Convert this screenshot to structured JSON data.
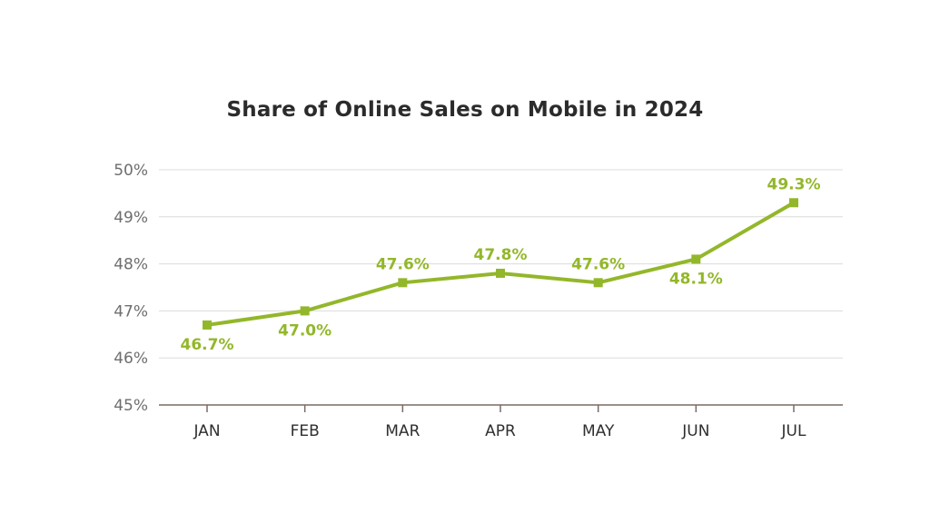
{
  "chart_data": {
    "type": "line",
    "title": "Share of Online Sales on Mobile in 2024",
    "xlabel": "",
    "ylabel": "",
    "categories": [
      "JAN",
      "FEB",
      "MAR",
      "APR",
      "MAY",
      "JUN",
      "JUL"
    ],
    "series": [
      {
        "values": [
          46.7,
          47.0,
          47.6,
          47.8,
          47.6,
          48.1,
          49.3
        ],
        "labels": [
          "46.7%",
          "47.0%",
          "47.6%",
          "47.8%",
          "47.6%",
          "48.1%",
          "49.3%"
        ],
        "label_positions": [
          "below",
          "below",
          "above",
          "above",
          "above",
          "below",
          "above"
        ]
      }
    ],
    "ylim": [
      45,
      50
    ],
    "yticks": [
      45,
      46,
      47,
      48,
      49,
      50
    ],
    "ytick_labels": [
      "45%",
      "46%",
      "47%",
      "48%",
      "49%",
      "50%"
    ],
    "grid": true,
    "legend": "none",
    "colors": {
      "line": "#93B72A",
      "grid": "#dcdcdc",
      "axis": "#7a6a62"
    }
  }
}
